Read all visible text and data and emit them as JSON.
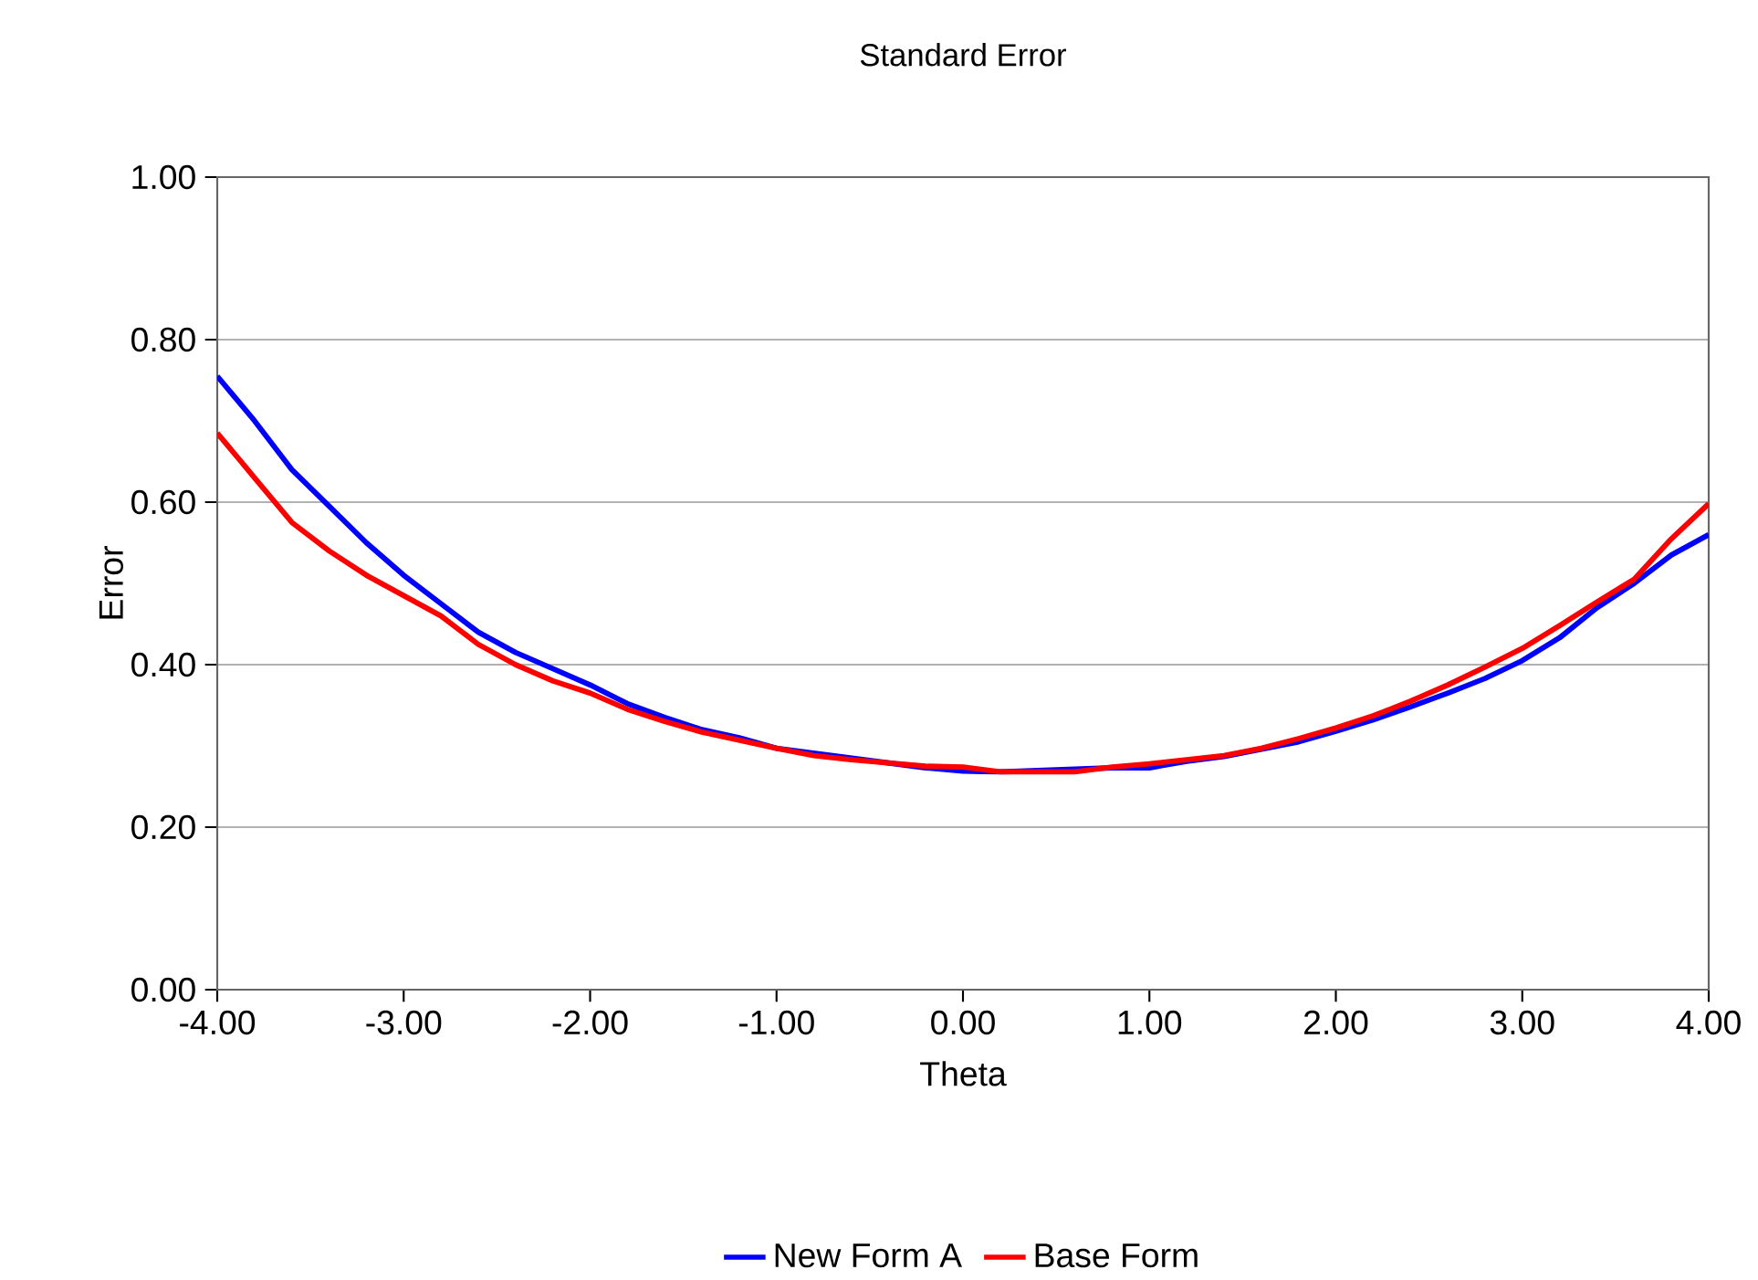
{
  "chart_data": {
    "type": "line",
    "title": "Standard Error",
    "xlabel": "Theta",
    "ylabel": "Error",
    "x": [
      -4,
      -3.8,
      -3.6,
      -3.4,
      -3.2,
      -3,
      -2.8,
      -2.6,
      -2.4,
      -2.2,
      -2,
      -1.8,
      -1.6,
      -1.4,
      -1.2,
      -1,
      -0.8,
      -0.6,
      -0.4,
      -0.2,
      0,
      0.2,
      0.4,
      0.6,
      0.8,
      1,
      1.2,
      1.4,
      1.6,
      1.8,
      2,
      2.2,
      2.4,
      2.6,
      2.8,
      3,
      3.2,
      3.4,
      3.6,
      3.8,
      4
    ],
    "series": [
      {
        "name": "New  Form A",
        "color": "#0000ff",
        "values": [
          0.755,
          0.7,
          0.64,
          0.595,
          0.55,
          0.51,
          0.475,
          0.44,
          0.415,
          0.395,
          0.375,
          0.352,
          0.335,
          0.32,
          0.31,
          0.297,
          null,
          null,
          null,
          0.273,
          0.269,
          0.268,
          null,
          null,
          0.273,
          0.273,
          0.281,
          0.287,
          0.296,
          0.305,
          0.318,
          0.332,
          0.348,
          0.365,
          0.383,
          0.405,
          0.433,
          0.47,
          0.5,
          0.535,
          0.56
        ]
      },
      {
        "name": "Base Form",
        "color": "#ff0000",
        "values": [
          0.685,
          0.63,
          0.575,
          0.54,
          0.51,
          0.485,
          0.46,
          0.425,
          0.4,
          0.38,
          0.365,
          0.345,
          0.33,
          0.317,
          0.307,
          0.297,
          0.288,
          0.283,
          0.279,
          0.275,
          0.274,
          0.268,
          0.268,
          0.268,
          0.274,
          0.278,
          0.283,
          0.288,
          0.297,
          0.309,
          0.322,
          0.337,
          0.355,
          0.375,
          0.397,
          0.42,
          0.448,
          0.477,
          0.505,
          0.555,
          0.598
        ]
      }
    ],
    "xlim": [
      -4,
      4
    ],
    "ylim": [
      0,
      1
    ],
    "xticks": [
      {
        "value": -4,
        "label": "-4.00"
      },
      {
        "value": -3,
        "label": "-3.00"
      },
      {
        "value": -2,
        "label": "-2.00"
      },
      {
        "value": -1,
        "label": "-1.00"
      },
      {
        "value": 0,
        "label": "0.00"
      },
      {
        "value": 1,
        "label": "1.00"
      },
      {
        "value": 2,
        "label": "2.00"
      },
      {
        "value": 3,
        "label": "3.00"
      },
      {
        "value": 4,
        "label": "4.00"
      }
    ],
    "yticks": [
      {
        "value": 0,
        "label": "0.00"
      },
      {
        "value": 0.2,
        "label": "0.20"
      },
      {
        "value": 0.4,
        "label": "0.40"
      },
      {
        "value": 0.6,
        "label": "0.60"
      },
      {
        "value": 0.8,
        "label": "0.80"
      },
      {
        "value": 1,
        "label": "1.00"
      }
    ],
    "grid": "y",
    "legend": "bottom",
    "marker": "none",
    "line_style": "solid"
  }
}
